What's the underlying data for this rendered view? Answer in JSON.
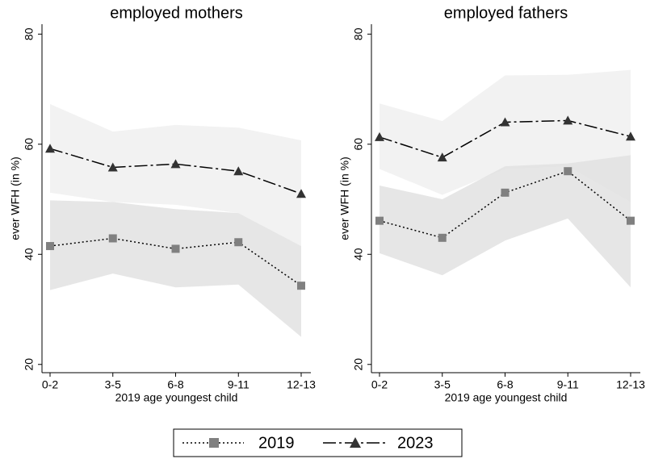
{
  "chart_data": [
    {
      "type": "line",
      "title": "employed mothers",
      "xlabel": "2019 age youngest child",
      "ylabel": "ever WFH (in %)",
      "categories": [
        "0-2",
        "3-5",
        "6-8",
        "9-11",
        "12-13"
      ],
      "ylim": [
        18.5,
        81.8
      ],
      "yticks": [
        20,
        40,
        60,
        80
      ],
      "series": [
        {
          "name": "2019",
          "color": "#808080",
          "marker": "square",
          "band_color": "#e2e2e2",
          "values": [
            41.5,
            42.9,
            41.0,
            42.2,
            34.3
          ],
          "ci_lower": [
            33.5,
            36.5,
            34.0,
            34.5,
            25.0
          ],
          "ci_upper": [
            49.8,
            49.5,
            48.2,
            47.5,
            41.5
          ]
        },
        {
          "name": "2023",
          "color": "#333333",
          "marker": "triangle",
          "band_color": "#f0f0f0",
          "values": [
            59.2,
            55.8,
            56.4,
            55.1,
            51.0
          ],
          "ci_lower": [
            51.2,
            49.5,
            49.0,
            47.5,
            41.5
          ],
          "ci_upper": [
            67.3,
            62.3,
            63.5,
            63.0,
            60.7
          ]
        }
      ]
    },
    {
      "type": "line",
      "title": "employed fathers",
      "xlabel": "2019 age youngest child",
      "ylabel": "ever WFH (in %)",
      "categories": [
        "0-2",
        "3-5",
        "6-8",
        "9-11",
        "12-13"
      ],
      "ylim": [
        18.5,
        81.8
      ],
      "yticks": [
        20,
        40,
        60,
        80
      ],
      "series": [
        {
          "color": "#808080",
          "marker": "square",
          "band_color": "#e2e2e2",
          "values": [
            46.1,
            43.0,
            51.2,
            55.1,
            46.1
          ],
          "ci_lower": [
            40.2,
            36.2,
            42.5,
            46.5,
            34.0
          ],
          "ci_upper": [
            52.5,
            50.0,
            56.0,
            56.5,
            58.0
          ]
        },
        {
          "color": "#333333",
          "marker": "triangle",
          "band_color": "#f0f0f0",
          "values": [
            61.3,
            57.6,
            64.0,
            64.3,
            61.4
          ],
          "ci_lower": [
            55.5,
            50.8,
            55.5,
            56.0,
            49.5
          ],
          "ci_upper": [
            67.4,
            64.2,
            72.5,
            72.6,
            73.5
          ]
        }
      ]
    }
  ]
}
